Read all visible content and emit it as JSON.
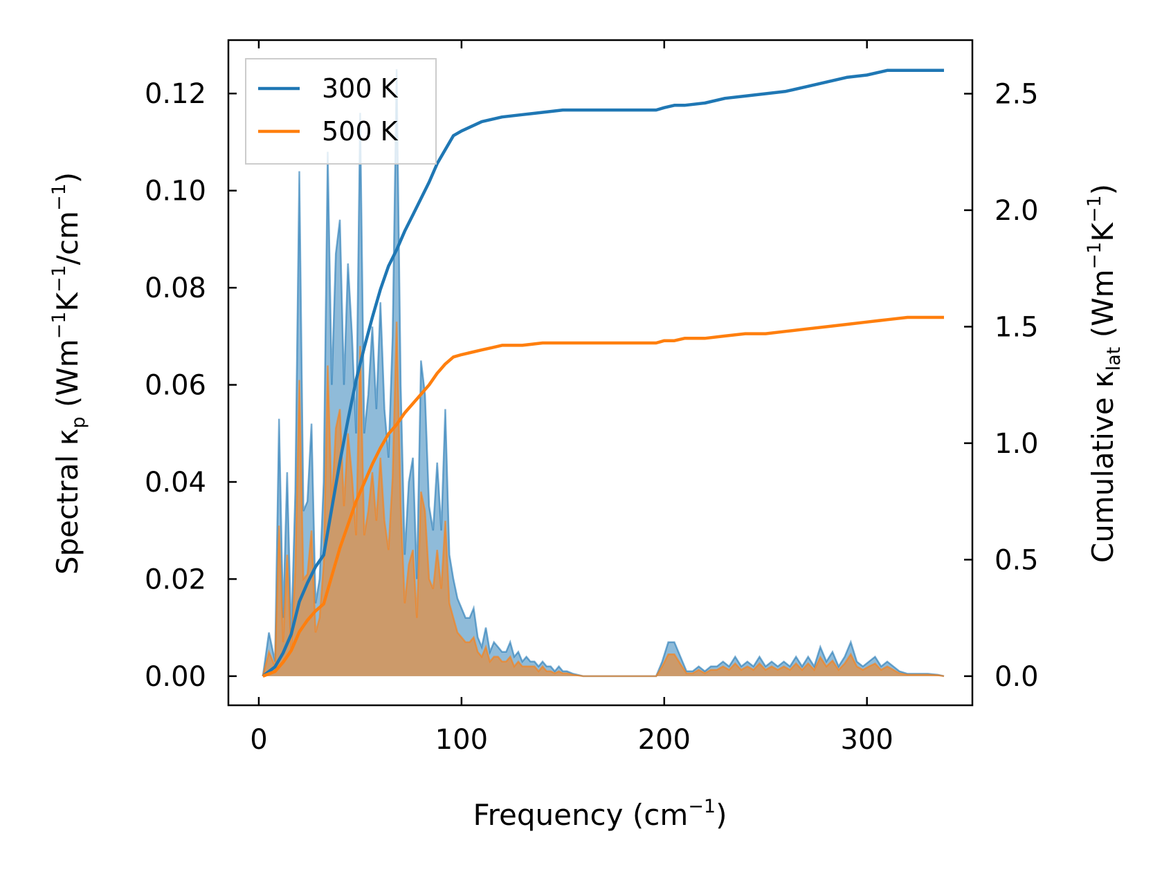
{
  "chart_data": {
    "type": "line",
    "xlabel": "Frequency (cm⁻¹)",
    "xlabel_main": "Frequency (cm",
    "xlabel_sup": "−1",
    "xlabel_close": ")",
    "ylabel_left_parts": [
      "Spectral κ",
      "p",
      " (Wm",
      "−1",
      "K",
      "−1",
      "/cm",
      "−1",
      ")"
    ],
    "ylabel_right_parts": [
      "Cumulative κ",
      "lat",
      " (Wm",
      "−1",
      "K",
      "−1",
      ")"
    ],
    "xlim": [
      -15,
      352
    ],
    "ylim_left": [
      -0.006,
      0.131
    ],
    "ylim_right": [
      -0.125,
      2.73
    ],
    "xticks": [
      0,
      100,
      200,
      300
    ],
    "xtick_labels": [
      "0",
      "100",
      "200",
      "300"
    ],
    "yticks_left": [
      0.0,
      0.02,
      0.04,
      0.06,
      0.08,
      0.1,
      0.12
    ],
    "ytick_labels_left": [
      "0.00",
      "0.02",
      "0.04",
      "0.06",
      "0.08",
      "0.10",
      "0.12"
    ],
    "yticks_right": [
      0.0,
      0.5,
      1.0,
      1.5,
      2.0,
      2.5
    ],
    "ytick_labels_right": [
      "0.0",
      "0.5",
      "1.0",
      "1.5",
      "2.0",
      "2.5"
    ],
    "legend_position": "top-left",
    "series": [
      {
        "name": "300 K",
        "color": "#1f77b4",
        "fill_color": "#1f77b4",
        "spectral": {
          "x": [
            2,
            5,
            8,
            10,
            12,
            14,
            16,
            18,
            20,
            22,
            24,
            26,
            28,
            30,
            32,
            34,
            36,
            38,
            40,
            42,
            44,
            46,
            48,
            50,
            52,
            54,
            56,
            58,
            60,
            62,
            64,
            66,
            68,
            70,
            72,
            74,
            76,
            78,
            80,
            82,
            84,
            86,
            88,
            90,
            92,
            94,
            96,
            98,
            100,
            102,
            104,
            106,
            108,
            110,
            112,
            114,
            116,
            118,
            120,
            122,
            124,
            126,
            128,
            130,
            132,
            134,
            136,
            138,
            140,
            142,
            144,
            146,
            148,
            150,
            152,
            155,
            160,
            170,
            180,
            190,
            196,
            199,
            202,
            205,
            208,
            211,
            214,
            217,
            220,
            223,
            226,
            229,
            232,
            235,
            238,
            241,
            244,
            247,
            250,
            253,
            256,
            259,
            262,
            265,
            268,
            271,
            274,
            277,
            280,
            283,
            286,
            289,
            292,
            295,
            298,
            301,
            304,
            307,
            310,
            313,
            316,
            320,
            325,
            330,
            335,
            338
          ],
          "y": [
            0.0,
            0.009,
            0.003,
            0.053,
            0.012,
            0.042,
            0.008,
            0.038,
            0.104,
            0.034,
            0.036,
            0.052,
            0.015,
            0.02,
            0.04,
            0.108,
            0.06,
            0.087,
            0.094,
            0.06,
            0.085,
            0.07,
            0.05,
            0.116,
            0.05,
            0.058,
            0.072,
            0.055,
            0.077,
            0.055,
            0.045,
            0.07,
            0.125,
            0.06,
            0.025,
            0.04,
            0.045,
            0.02,
            0.065,
            0.058,
            0.035,
            0.03,
            0.044,
            0.03,
            0.055,
            0.025,
            0.02,
            0.016,
            0.014,
            0.012,
            0.012,
            0.014,
            0.008,
            0.006,
            0.01,
            0.005,
            0.007,
            0.006,
            0.005,
            0.005,
            0.007,
            0.004,
            0.005,
            0.003,
            0.004,
            0.003,
            0.003,
            0.002,
            0.003,
            0.002,
            0.002,
            0.001,
            0.002,
            0.001,
            0.001,
            0.0005,
            0.0,
            0.0,
            0.0,
            0.0,
            0.0,
            0.003,
            0.007,
            0.007,
            0.004,
            0.001,
            0.001,
            0.002,
            0.001,
            0.002,
            0.002,
            0.003,
            0.002,
            0.004,
            0.002,
            0.003,
            0.002,
            0.004,
            0.002,
            0.003,
            0.002,
            0.003,
            0.002,
            0.004,
            0.002,
            0.004,
            0.002,
            0.006,
            0.003,
            0.005,
            0.002,
            0.004,
            0.007,
            0.003,
            0.002,
            0.003,
            0.004,
            0.002,
            0.003,
            0.002,
            0.001,
            0.0005,
            0.0005,
            0.0005,
            0.0003,
            0.0
          ]
        },
        "cumulative": {
          "x": [
            2,
            8,
            12,
            16,
            20,
            24,
            28,
            32,
            36,
            40,
            44,
            48,
            52,
            56,
            60,
            64,
            68,
            72,
            76,
            80,
            84,
            88,
            92,
            96,
            100,
            105,
            110,
            115,
            120,
            130,
            140,
            150,
            160,
            170,
            180,
            190,
            196,
            200,
            205,
            210,
            220,
            230,
            240,
            250,
            260,
            270,
            280,
            290,
            300,
            310,
            320,
            330,
            338
          ],
          "y": [
            0.0,
            0.04,
            0.1,
            0.18,
            0.32,
            0.4,
            0.47,
            0.52,
            0.72,
            0.92,
            1.1,
            1.27,
            1.41,
            1.54,
            1.66,
            1.76,
            1.83,
            1.91,
            1.98,
            2.05,
            2.12,
            2.2,
            2.26,
            2.32,
            2.34,
            2.36,
            2.38,
            2.39,
            2.4,
            2.41,
            2.42,
            2.43,
            2.43,
            2.43,
            2.43,
            2.43,
            2.43,
            2.44,
            2.45,
            2.45,
            2.46,
            2.48,
            2.49,
            2.5,
            2.51,
            2.53,
            2.55,
            2.57,
            2.58,
            2.6,
            2.6,
            2.6,
            2.6
          ]
        }
      },
      {
        "name": "500 K",
        "color": "#ff7f0e",
        "fill_color": "#ff7f0e",
        "spectral": {
          "x": [
            2,
            5,
            8,
            10,
            12,
            14,
            16,
            18,
            20,
            22,
            24,
            26,
            28,
            30,
            32,
            34,
            36,
            38,
            40,
            42,
            44,
            46,
            48,
            50,
            52,
            54,
            56,
            58,
            60,
            62,
            64,
            66,
            68,
            70,
            72,
            74,
            76,
            78,
            80,
            82,
            84,
            86,
            88,
            90,
            92,
            94,
            96,
            98,
            100,
            102,
            104,
            106,
            108,
            110,
            112,
            114,
            116,
            118,
            120,
            122,
            124,
            126,
            128,
            130,
            132,
            134,
            136,
            138,
            140,
            142,
            144,
            146,
            148,
            150,
            152,
            155,
            160,
            170,
            180,
            190,
            196,
            199,
            202,
            205,
            208,
            211,
            214,
            217,
            220,
            223,
            226,
            229,
            232,
            235,
            238,
            241,
            244,
            247,
            250,
            253,
            256,
            259,
            262,
            265,
            268,
            271,
            274,
            277,
            280,
            283,
            286,
            289,
            292,
            295,
            298,
            301,
            304,
            307,
            310,
            313,
            316,
            320,
            325,
            330,
            335,
            338
          ],
          "y": [
            0.0,
            0.005,
            0.002,
            0.031,
            0.007,
            0.025,
            0.005,
            0.022,
            0.061,
            0.02,
            0.021,
            0.03,
            0.009,
            0.012,
            0.023,
            0.064,
            0.035,
            0.051,
            0.055,
            0.035,
            0.05,
            0.041,
            0.029,
            0.068,
            0.029,
            0.034,
            0.042,
            0.032,
            0.045,
            0.032,
            0.026,
            0.041,
            0.073,
            0.035,
            0.015,
            0.023,
            0.026,
            0.012,
            0.038,
            0.034,
            0.02,
            0.018,
            0.026,
            0.018,
            0.032,
            0.015,
            0.012,
            0.009,
            0.008,
            0.007,
            0.007,
            0.008,
            0.005,
            0.004,
            0.006,
            0.003,
            0.004,
            0.004,
            0.003,
            0.003,
            0.004,
            0.002,
            0.003,
            0.002,
            0.002,
            0.002,
            0.002,
            0.001,
            0.002,
            0.001,
            0.001,
            0.0006,
            0.001,
            0.0006,
            0.0006,
            0.0003,
            0.0,
            0.0,
            0.0,
            0.0,
            0.0,
            0.002,
            0.0045,
            0.0045,
            0.0025,
            0.0006,
            0.0006,
            0.0013,
            0.0006,
            0.0013,
            0.0013,
            0.002,
            0.0013,
            0.0026,
            0.0013,
            0.002,
            0.0013,
            0.0026,
            0.0013,
            0.002,
            0.0013,
            0.002,
            0.0013,
            0.0026,
            0.0013,
            0.0026,
            0.0013,
            0.0039,
            0.002,
            0.0032,
            0.0013,
            0.0026,
            0.0045,
            0.002,
            0.0013,
            0.002,
            0.0026,
            0.0013,
            0.002,
            0.0013,
            0.0006,
            0.0003,
            0.0003,
            0.0003,
            0.0002,
            0.0
          ]
        },
        "cumulative": {
          "x": [
            2,
            8,
            12,
            16,
            20,
            24,
            28,
            32,
            36,
            40,
            44,
            48,
            52,
            56,
            60,
            64,
            68,
            72,
            76,
            80,
            84,
            88,
            92,
            96,
            100,
            105,
            110,
            115,
            120,
            130,
            140,
            150,
            160,
            170,
            180,
            190,
            196,
            200,
            205,
            210,
            220,
            230,
            240,
            250,
            260,
            270,
            280,
            290,
            300,
            310,
            320,
            330,
            338
          ],
          "y": [
            0.0,
            0.02,
            0.06,
            0.11,
            0.19,
            0.24,
            0.28,
            0.31,
            0.43,
            0.55,
            0.65,
            0.75,
            0.83,
            0.91,
            0.98,
            1.04,
            1.08,
            1.13,
            1.17,
            1.21,
            1.25,
            1.3,
            1.34,
            1.37,
            1.38,
            1.39,
            1.4,
            1.41,
            1.42,
            1.42,
            1.43,
            1.43,
            1.43,
            1.43,
            1.43,
            1.43,
            1.43,
            1.44,
            1.44,
            1.45,
            1.45,
            1.46,
            1.47,
            1.47,
            1.48,
            1.49,
            1.5,
            1.51,
            1.52,
            1.53,
            1.54,
            1.54,
            1.54
          ]
        }
      }
    ]
  }
}
